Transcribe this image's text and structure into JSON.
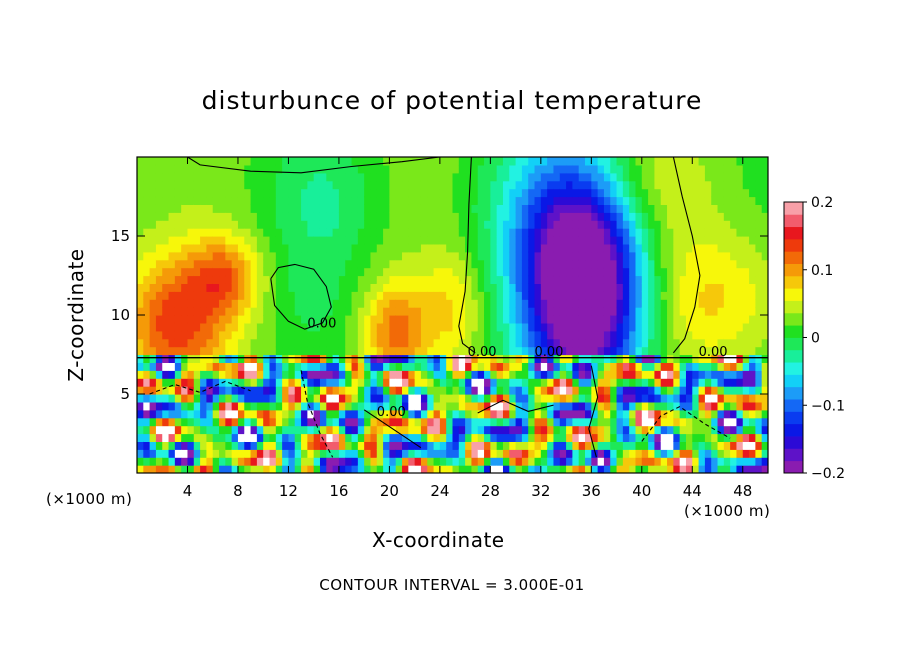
{
  "chart_data": {
    "type": "heatmap",
    "title": "disturbunce of potential temperature",
    "xlabel": "X-coordinate",
    "ylabel": "Z-coordinate",
    "x_unit": "(×1000 m)",
    "z_unit": "(×1000 m)",
    "footnote": "CONTOUR INTERVAL = 3.000E-01",
    "xlim": [
      0,
      50
    ],
    "ylim": [
      0,
      20
    ],
    "x_ticks": [
      4,
      8,
      12,
      16,
      20,
      24,
      28,
      32,
      36,
      40,
      44,
      48
    ],
    "y_ticks": [
      5,
      10,
      15
    ],
    "colorbar": {
      "range": [
        -0.2,
        0.2
      ],
      "tick_labels": [
        "0.2",
        "0.1",
        "0",
        "−0.1",
        "−0.2"
      ],
      "colors": [
        "#8a1cb0",
        "#5e12c8",
        "#2c0ad6",
        "#0a18e6",
        "#0a3cf0",
        "#1468f5",
        "#1c9cf7",
        "#12d0f7",
        "#22f2e2",
        "#18ef9a",
        "#1ee858",
        "#20e020",
        "#7ae81a",
        "#c4f01a",
        "#f7f70a",
        "#f6c80a",
        "#f59a08",
        "#f26a08",
        "#ee3a0c",
        "#e8171e",
        "#f25c6c",
        "#f8a0a8"
      ]
    },
    "contour_labels": [
      "0.00",
      "0.00",
      "0.00",
      "0.00",
      "0.00"
    ],
    "field_summary": {
      "upper_layer_z_range": [
        7.3,
        20
      ],
      "warm_anomaly_centers_x": [
        2,
        6,
        20,
        26
      ],
      "cold_anomaly_center_x": 35,
      "cold_anomaly_value": -0.2,
      "warm_anomaly_value": 0.12,
      "interface_z": 7.3
    }
  }
}
